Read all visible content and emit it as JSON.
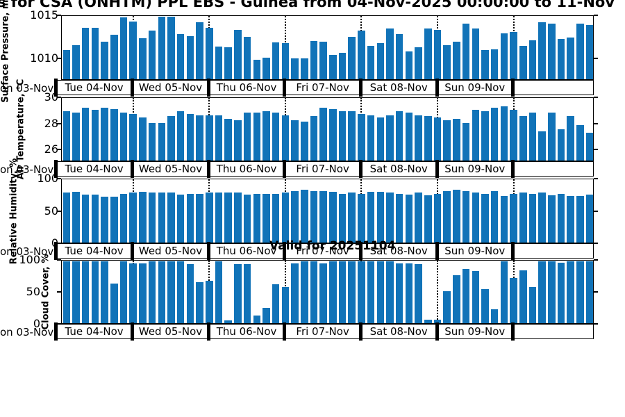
{
  "title": "s for CSA (ONHTM) PPL EBS  - Guinea from 04-Nov-2025 00:00:00 to 11-Nov",
  "valid_label": "Valid for 20251104",
  "left_edge_label": "on 03-Nov",
  "bar_color": "#1173b8",
  "chart_data": {
    "type": "bar",
    "x_step_hours": 3,
    "legend": "none",
    "grid": "day-boundary dotted vertical lines",
    "day_labels": [
      "Tue 04-Nov",
      "Wed 05-Nov",
      "Thu 06-Nov",
      "Fri 07-Nov",
      "Sat 08-Nov",
      "Sun 09-Nov",
      ""
    ],
    "panels": [
      {
        "ylabel": "Surface Pressure, mb",
        "ylim": [
          1007.5,
          1015
        ],
        "yticks": [
          {
            "value": 1015,
            "label": "1015"
          },
          {
            "value": 1010,
            "label": "1010"
          }
        ],
        "values": [
          1011.0,
          1011.6,
          1013.7,
          1013.7,
          1012.0,
          1012.8,
          1014.9,
          1014.4,
          1012.4,
          1013.3,
          1015.0,
          1015.2,
          1012.9,
          1012.7,
          1014.3,
          1013.7,
          1011.4,
          1011.3,
          1013.4,
          1012.6,
          1009.8,
          1010.1,
          1011.9,
          1011.8,
          1010.0,
          1010.0,
          1012.1,
          1012.0,
          1010.4,
          1010.7,
          1012.6,
          1013.3,
          1011.5,
          1011.8,
          1013.6,
          1012.9,
          1010.8,
          1011.3,
          1013.6,
          1013.4,
          1011.6,
          1012.0,
          1014.2,
          1013.6,
          1011.0,
          1011.1,
          1013.0,
          1013.2,
          1011.5,
          1012.2,
          1014.3,
          1014.2,
          1012.3,
          1012.5,
          1014.2,
          1014.0
        ]
      },
      {
        "ylabel": "Air Temperature, °C",
        "ylim": [
          25.1,
          30
        ],
        "yticks": [
          {
            "value": 30,
            "label": "30"
          },
          {
            "value": 28,
            "label": "28"
          },
          {
            "value": 26,
            "label": "26"
          }
        ],
        "values": [
          29.0,
          28.9,
          29.3,
          29.1,
          29.3,
          29.2,
          28.9,
          28.8,
          28.5,
          28.1,
          28.1,
          28.6,
          29.0,
          28.8,
          28.7,
          28.7,
          28.7,
          28.4,
          28.3,
          28.9,
          28.9,
          29.0,
          28.9,
          28.7,
          28.3,
          28.2,
          28.6,
          29.3,
          29.2,
          29.0,
          29.0,
          28.8,
          28.7,
          28.5,
          28.7,
          29.0,
          28.9,
          28.7,
          28.6,
          28.5,
          28.3,
          28.4,
          28.1,
          29.1,
          29.0,
          29.3,
          29.4,
          29.1,
          28.6,
          28.9,
          27.4,
          28.9,
          27.6,
          28.6,
          27.9,
          27.3
        ]
      },
      {
        "ylabel": "Relative Humidity, %",
        "ylim": [
          0,
          100
        ],
        "yticks": [
          {
            "value": 100,
            "label": "100"
          },
          {
            "value": 50,
            "label": "50"
          },
          {
            "value": 0,
            "label": "0"
          }
        ],
        "values": [
          80,
          81,
          77,
          77,
          73,
          73,
          78,
          80,
          81,
          80,
          80,
          80,
          77,
          78,
          78,
          80,
          80,
          80,
          80,
          77,
          78,
          78,
          78,
          80,
          82,
          84,
          82,
          82,
          81,
          78,
          80,
          78,
          81,
          81,
          80,
          78,
          77,
          80,
          76,
          78,
          82,
          84,
          82,
          80,
          78,
          82,
          75,
          78,
          80,
          78,
          80,
          76,
          78,
          74,
          75,
          77
        ]
      },
      {
        "ylabel": "Cloud Cover, %",
        "ylim": [
          0,
          100
        ],
        "yticks": [
          {
            "value": 100,
            "label": "100"
          },
          {
            "value": 50,
            "label": "50"
          },
          {
            "value": 0,
            "label": "0"
          }
        ],
        "values": [
          100,
          100,
          100,
          100,
          100,
          64,
          100,
          97,
          97,
          100,
          100,
          100,
          100,
          96,
          66,
          68,
          100,
          5,
          95,
          95,
          12,
          25,
          63,
          58,
          97,
          100,
          100,
          97,
          100,
          100,
          100,
          100,
          100,
          100,
          100,
          97,
          97,
          96,
          6,
          6,
          52,
          77,
          88,
          84,
          55,
          22,
          100,
          73,
          85,
          58,
          100,
          100,
          98,
          100,
          100,
          100
        ]
      }
    ]
  }
}
